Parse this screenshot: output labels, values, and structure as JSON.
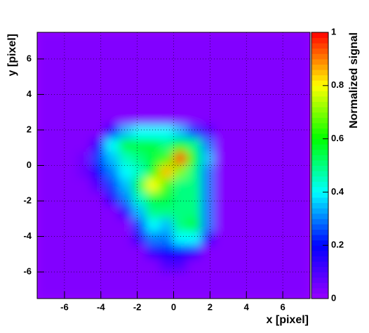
{
  "chart_data": {
    "type": "heatmap",
    "x_label": "x [pixel]",
    "y_label": "y [pixel]",
    "z_label": "Normalized signal",
    "xlim": [
      -7.5,
      7.5
    ],
    "ylim": [
      -7.5,
      7.5
    ],
    "zlim": [
      0,
      1
    ],
    "xticks": [
      -6,
      -4,
      -2,
      0,
      2,
      4,
      6
    ],
    "yticks": [
      -6,
      -4,
      -2,
      0,
      2,
      4,
      6
    ],
    "zticks": [
      0,
      0.2,
      0.4,
      0.6,
      0.8,
      1
    ],
    "grid": true,
    "palette": [
      "#9900ff",
      "#0000ff",
      "#00ffff",
      "#00ff00",
      "#ffff00",
      "#ff0000"
    ],
    "z": [
      [
        0.03,
        0.03,
        0.03,
        0.03,
        0.03,
        0.03,
        0.03,
        0.03,
        0.03,
        0.03,
        0.03,
        0.03,
        0.03,
        0.03,
        0.03,
        0.03,
        0.03,
        0.03,
        0.03,
        0.03
      ],
      [
        0.03,
        0.03,
        0.03,
        0.03,
        0.03,
        0.03,
        0.03,
        0.03,
        0.03,
        0.03,
        0.03,
        0.03,
        0.03,
        0.03,
        0.03,
        0.03,
        0.03,
        0.03,
        0.03,
        0.03
      ],
      [
        0.03,
        0.03,
        0.03,
        0.03,
        0.03,
        0.03,
        0.03,
        0.03,
        0.03,
        0.03,
        0.03,
        0.03,
        0.03,
        0.03,
        0.03,
        0.03,
        0.03,
        0.03,
        0.03,
        0.03
      ],
      [
        0.03,
        0.03,
        0.03,
        0.03,
        0.03,
        0.03,
        0.03,
        0.03,
        0.03,
        0.03,
        0.03,
        0.03,
        0.03,
        0.03,
        0.03,
        0.03,
        0.03,
        0.03,
        0.03,
        0.03
      ],
      [
        0.03,
        0.03,
        0.03,
        0.03,
        0.03,
        0.03,
        0.03,
        0.03,
        0.03,
        0.03,
        0.03,
        0.03,
        0.03,
        0.03,
        0.03,
        0.03,
        0.03,
        0.03,
        0.03,
        0.03
      ],
      [
        0.03,
        0.03,
        0.03,
        0.03,
        0.03,
        0.03,
        0.03,
        0.03,
        0.03,
        0.03,
        0.03,
        0.03,
        0.03,
        0.03,
        0.03,
        0.03,
        0.03,
        0.03,
        0.03,
        0.03
      ],
      [
        0.03,
        0.03,
        0.03,
        0.03,
        0.03,
        0.03,
        0.03,
        0.03,
        0.03,
        0.03,
        0.03,
        0.03,
        0.03,
        0.03,
        0.03,
        0.03,
        0.03,
        0.03,
        0.03,
        0.03
      ],
      [
        0.03,
        0.03,
        0.03,
        0.03,
        0.03,
        0.2,
        0.35,
        0.4,
        0.4,
        0.4,
        0.35,
        0.25,
        0.1,
        0.03,
        0.03,
        0.03,
        0.03,
        0.03,
        0.03,
        0.03
      ],
      [
        0.03,
        0.03,
        0.03,
        0.03,
        0.15,
        0.4,
        0.55,
        0.55,
        0.55,
        0.5,
        0.6,
        0.5,
        0.3,
        0.03,
        0.03,
        0.03,
        0.03,
        0.03,
        0.03,
        0.03
      ],
      [
        0.03,
        0.03,
        0.03,
        0.06,
        0.25,
        0.35,
        0.45,
        0.5,
        0.55,
        0.65,
        0.95,
        0.6,
        0.35,
        0.03,
        0.03,
        0.03,
        0.03,
        0.03,
        0.03,
        0.03
      ],
      [
        0.03,
        0.03,
        0.03,
        0.06,
        0.2,
        0.3,
        0.4,
        0.45,
        0.6,
        0.85,
        0.7,
        0.5,
        0.3,
        0.03,
        0.03,
        0.03,
        0.03,
        0.03,
        0.03,
        0.03
      ],
      [
        0.03,
        0.03,
        0.03,
        0.03,
        0.1,
        0.25,
        0.35,
        0.55,
        0.8,
        0.65,
        0.5,
        0.5,
        0.3,
        0.03,
        0.03,
        0.03,
        0.03,
        0.03,
        0.03,
        0.03
      ],
      [
        0.03,
        0.03,
        0.03,
        0.03,
        0.03,
        0.15,
        0.3,
        0.45,
        0.55,
        0.55,
        0.5,
        0.5,
        0.3,
        0.03,
        0.03,
        0.03,
        0.03,
        0.03,
        0.03,
        0.03
      ],
      [
        0.03,
        0.03,
        0.03,
        0.03,
        0.03,
        0.03,
        0.15,
        0.35,
        0.5,
        0.5,
        0.5,
        0.5,
        0.3,
        0.03,
        0.03,
        0.03,
        0.03,
        0.03,
        0.03,
        0.03
      ],
      [
        0.03,
        0.03,
        0.03,
        0.03,
        0.03,
        0.03,
        0.03,
        0.25,
        0.4,
        0.35,
        0.5,
        0.55,
        0.3,
        0.03,
        0.03,
        0.03,
        0.03,
        0.03,
        0.03,
        0.03
      ],
      [
        0.03,
        0.03,
        0.03,
        0.03,
        0.03,
        0.03,
        0.03,
        0.15,
        0.3,
        0.3,
        0.4,
        0.4,
        0.15,
        0.03,
        0.03,
        0.03,
        0.03,
        0.03,
        0.03,
        0.03
      ],
      [
        0.03,
        0.03,
        0.03,
        0.03,
        0.03,
        0.03,
        0.03,
        0.03,
        0.15,
        0.2,
        0.2,
        0.15,
        0.03,
        0.03,
        0.03,
        0.03,
        0.03,
        0.03,
        0.03,
        0.03
      ],
      [
        0.03,
        0.03,
        0.03,
        0.03,
        0.03,
        0.03,
        0.03,
        0.03,
        0.03,
        0.1,
        0.1,
        0.03,
        0.03,
        0.03,
        0.03,
        0.03,
        0.03,
        0.03,
        0.03,
        0.03
      ],
      [
        0.03,
        0.03,
        0.03,
        0.03,
        0.03,
        0.03,
        0.03,
        0.03,
        0.03,
        0.03,
        0.03,
        0.03,
        0.03,
        0.03,
        0.03,
        0.03,
        0.03,
        0.03,
        0.03,
        0.03
      ],
      [
        0.03,
        0.03,
        0.03,
        0.03,
        0.03,
        0.03,
        0.03,
        0.03,
        0.03,
        0.03,
        0.03,
        0.03,
        0.03,
        0.03,
        0.03,
        0.03,
        0.03,
        0.03,
        0.03,
        0.03
      ]
    ]
  }
}
